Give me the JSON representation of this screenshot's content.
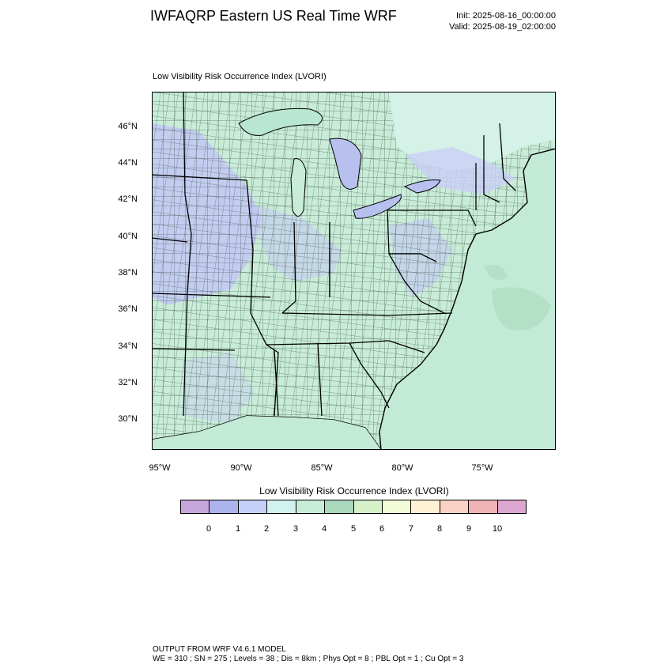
{
  "header": {
    "title": "IWFAQRP Eastern US Real Time WRF",
    "init": "Init: 2025-08-16_00:00:00",
    "valid": "Valid: 2025-08-19_02:00:00"
  },
  "map": {
    "field_label": "Low Visibility Risk Occurrence Index   (LVORI)",
    "lat_labels": [
      "46°N",
      "44°N",
      "42°N",
      "40°N",
      "38°N",
      "36°N",
      "34°N",
      "32°N",
      "30°N"
    ],
    "lon_labels": [
      "95°W",
      "90°W",
      "85°W",
      "80°W",
      "75°W"
    ],
    "colors": {
      "land_base": "#c8ecd8",
      "ocean": "#c2ead6",
      "blue_area": "#c2c8f4",
      "lake": "#b8c0ee",
      "county_lines": "#000000"
    }
  },
  "colorbar": {
    "title": "Low Visibility Risk Occurrence Index  (LVORI)",
    "labels": [
      "0",
      "1",
      "2",
      "3",
      "4",
      "5",
      "6",
      "7",
      "8",
      "9",
      "10"
    ],
    "colors": [
      "#c7a6dc",
      "#adb3ec",
      "#c5d0f8",
      "#d0f3ef",
      "#c8ecd8",
      "#a9d8bc",
      "#d6f1c8",
      "#f4fbd8",
      "#fef1d4",
      "#fad2c4",
      "#f0b4b4",
      "#dba6cf"
    ]
  },
  "footer": {
    "line1": "OUTPUT FROM WRF V4.6.1 MODEL",
    "line2": "WE = 310 ; SN = 275 ; Levels = 38 ; Dis = 8km ; Phys Opt = 8 ; PBL Opt = 1 ; Cu Opt = 3"
  }
}
